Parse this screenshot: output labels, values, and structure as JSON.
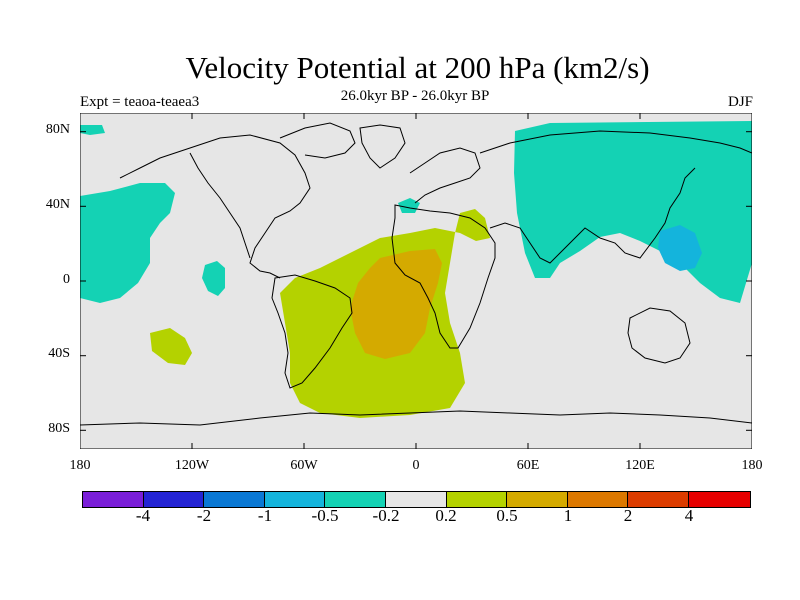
{
  "title": "Velocity Potential at 200 hPa (km2/s)",
  "subtitle": "26.0kyr BP - 26.0kyr BP",
  "experiment": "Expt = teaoa-teaea3",
  "season": "DJF",
  "map": {
    "projection": "cylindrical equidistant",
    "lon_range": [
      -180,
      180
    ],
    "lat_range": [
      -90,
      90
    ],
    "lat_ticks": [
      "80N",
      "40N",
      "0",
      "40S",
      "80S"
    ],
    "lon_ticks": [
      "180",
      "120W",
      "60W",
      "0",
      "60E",
      "120E",
      "180"
    ]
  },
  "colorbar": {
    "labels": [
      "-4",
      "-2",
      "-1",
      "-0.5",
      "-0.2",
      "0.2",
      "0.5",
      "1",
      "2",
      "4"
    ],
    "colors": [
      "#7a1ed8",
      "#2424d4",
      "#0a78d4",
      "#14b4dc",
      "#14d2b4",
      "#e6e6e6",
      "#b4d200",
      "#d4aa00",
      "#dc7800",
      "#dc3c00",
      "#e60000"
    ]
  },
  "colors": {
    "background": "#e6e6e6",
    "neg_02_05": "#14d2b4",
    "neg_05_1": "#14b4dc",
    "pos_02_05": "#b4d200",
    "pos_05_1": "#d4aa00",
    "coast": "#000000"
  }
}
